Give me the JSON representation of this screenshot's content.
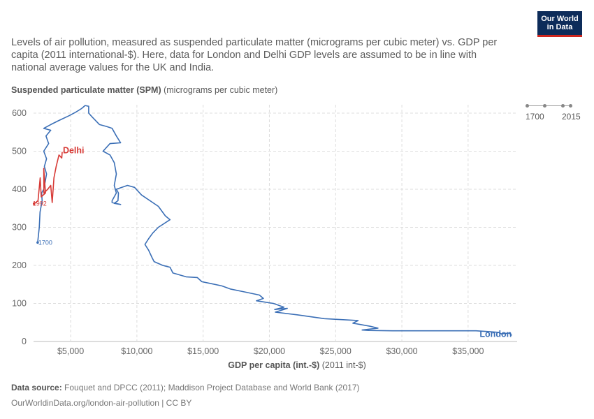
{
  "subtitle": "Levels of air pollution, measured as suspended particulate matter (micrograms per cubic meter) vs. GDP per capita (2011 international-$). Here, data for London and Delhi GDP levels are assumed to be in line with national average values for the UK and India.",
  "logo": {
    "line1": "Our World",
    "line2": "in Data"
  },
  "colors": {
    "london": "#3b6fb6",
    "delhi": "#d73a36",
    "logo_bg": "#0d2c5a",
    "logo_accent": "#ce261e"
  },
  "timeline": {
    "start": "1700",
    "end": "2015"
  },
  "footer": {
    "source_label": "Data source:",
    "source_text": "Fouquet and DPCC (2011); Maddison Project Database and World Bank (2017)",
    "url_text": "OurWorldinData.org/london-air-pollution | CC BY"
  },
  "chart_data": {
    "type": "line",
    "ylabel_bold": "Suspended particulate matter (SPM)",
    "ylabel_rest": "(micrograms per cubic meter)",
    "xlabel_bold": "GDP per capita (int.-$)",
    "xlabel_rest": "(2011 int-$)",
    "xlim": [
      2200,
      38700
    ],
    "ylim": [
      0,
      620
    ],
    "grid": true,
    "y_ticks": [
      0,
      100,
      200,
      300,
      400,
      500,
      600
    ],
    "y_tick_labels": [
      "0",
      "100",
      "200",
      "300",
      "400",
      "500",
      "600"
    ],
    "x_ticks": [
      5000,
      10000,
      15000,
      20000,
      25000,
      30000,
      35000
    ],
    "x_tick_labels": [
      "$5,000",
      "$10,000",
      "$15,000",
      "$20,000",
      "$25,000",
      "$30,000",
      "$35,000"
    ],
    "series": [
      {
        "name": "London",
        "start_label": "1700",
        "points": [
          [
            2510,
            260
          ],
          [
            2630,
            300
          ],
          [
            2690,
            340
          ],
          [
            2850,
            370
          ],
          [
            2810,
            390
          ],
          [
            2970,
            400
          ],
          [
            3080,
            420
          ],
          [
            3180,
            440
          ],
          [
            3020,
            460
          ],
          [
            3180,
            480
          ],
          [
            2970,
            500
          ],
          [
            3340,
            520
          ],
          [
            3140,
            540
          ],
          [
            3500,
            555
          ],
          [
            2970,
            560
          ],
          [
            3500,
            570
          ],
          [
            4080,
            580
          ],
          [
            4870,
            593
          ],
          [
            5400,
            603
          ],
          [
            5820,
            612
          ],
          [
            6090,
            620
          ],
          [
            6360,
            618
          ],
          [
            6360,
            600
          ],
          [
            6620,
            590
          ],
          [
            7180,
            570
          ],
          [
            7710,
            565
          ],
          [
            8130,
            560
          ],
          [
            8450,
            540
          ],
          [
            8770,
            522
          ],
          [
            7970,
            520
          ],
          [
            7450,
            500
          ],
          [
            7970,
            490
          ],
          [
            8290,
            470
          ],
          [
            8450,
            440
          ],
          [
            8290,
            410
          ],
          [
            8450,
            390
          ],
          [
            8130,
            370
          ],
          [
            8130,
            365
          ],
          [
            8770,
            360
          ],
          [
            8290,
            363
          ],
          [
            8570,
            370
          ],
          [
            8610,
            390
          ],
          [
            8450,
            400
          ],
          [
            9290,
            410
          ],
          [
            9820,
            405
          ],
          [
            10350,
            385
          ],
          [
            11620,
            355
          ],
          [
            12150,
            330
          ],
          [
            12500,
            320
          ],
          [
            11620,
            300
          ],
          [
            11200,
            285
          ],
          [
            10880,
            270
          ],
          [
            10610,
            255
          ],
          [
            10880,
            240
          ],
          [
            11150,
            220
          ],
          [
            11300,
            210
          ],
          [
            11950,
            200
          ],
          [
            12500,
            195
          ],
          [
            12720,
            180
          ],
          [
            13720,
            170
          ],
          [
            14560,
            168
          ],
          [
            14900,
            157
          ],
          [
            15620,
            152
          ],
          [
            16410,
            146
          ],
          [
            17040,
            138
          ],
          [
            18150,
            130
          ],
          [
            19250,
            122
          ],
          [
            19550,
            113
          ],
          [
            19020,
            107
          ],
          [
            20300,
            100
          ],
          [
            21100,
            90
          ],
          [
            20400,
            84
          ],
          [
            21350,
            87
          ],
          [
            20450,
            77
          ],
          [
            22150,
            70
          ],
          [
            24150,
            60
          ],
          [
            26700,
            55
          ],
          [
            26300,
            48
          ],
          [
            27600,
            40
          ],
          [
            28200,
            35
          ],
          [
            27000,
            30
          ],
          [
            27500,
            29
          ],
          [
            29300,
            28
          ],
          [
            33800,
            28
          ],
          [
            35600,
            28
          ],
          [
            36500,
            26
          ],
          [
            37300,
            24
          ],
          [
            37500,
            20
          ],
          [
            38100,
            22
          ],
          [
            38300,
            16
          ]
        ]
      },
      {
        "name": "Delhi",
        "start_label": "1992",
        "points": [
          [
            2240,
            362
          ],
          [
            2540,
            370
          ],
          [
            2700,
            430
          ],
          [
            2780,
            380
          ],
          [
            3100,
            390
          ],
          [
            2970,
            455
          ],
          [
            2980,
            390
          ],
          [
            3270,
            400
          ],
          [
            3500,
            410
          ],
          [
            3610,
            365
          ],
          [
            3740,
            430
          ],
          [
            3910,
            460
          ],
          [
            4120,
            490
          ],
          [
            4330,
            482
          ],
          [
            4360,
            498
          ]
        ]
      }
    ]
  }
}
